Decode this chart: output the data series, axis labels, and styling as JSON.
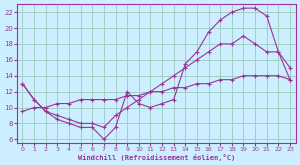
{
  "xlabel": "Windchill (Refroidissement éolien,°C)",
  "bg_color": "#cceeff",
  "line_color": "#993399",
  "grid_color": "#99ccbb",
  "xlim": [
    -0.5,
    23.5
  ],
  "ylim": [
    5.5,
    23
  ],
  "xticks": [
    0,
    1,
    2,
    3,
    4,
    5,
    6,
    7,
    8,
    9,
    10,
    11,
    12,
    13,
    14,
    15,
    16,
    17,
    18,
    19,
    20,
    21,
    22,
    23
  ],
  "yticks": [
    6,
    8,
    10,
    12,
    14,
    16,
    18,
    20,
    22
  ],
  "line1_x": [
    0,
    1,
    2,
    3,
    4,
    5,
    6,
    7,
    8,
    9,
    10,
    11,
    12,
    13,
    14,
    15,
    16,
    17,
    18,
    19,
    20,
    21,
    22,
    23
  ],
  "line1_y": [
    13,
    11,
    9.5,
    8.5,
    8,
    7.5,
    7.5,
    6,
    7.5,
    12,
    10.5,
    10,
    10.5,
    11,
    15.5,
    17,
    19.5,
    21,
    22,
    22.5,
    22.5,
    21.5,
    17,
    15
  ],
  "line2_x": [
    0,
    1,
    2,
    3,
    4,
    5,
    6,
    7,
    8,
    9,
    10,
    11,
    12,
    13,
    14,
    15,
    16,
    17,
    18,
    19,
    20,
    21,
    22,
    23
  ],
  "line2_y": [
    13,
    11,
    9.5,
    9,
    8.5,
    8,
    8,
    7.5,
    9,
    10,
    11,
    12,
    13,
    14,
    15,
    16,
    17,
    18,
    18,
    19,
    18,
    17,
    17,
    13.5
  ],
  "line3_x": [
    0,
    1,
    2,
    3,
    4,
    5,
    6,
    7,
    8,
    9,
    10,
    11,
    12,
    13,
    14,
    15,
    16,
    17,
    18,
    19,
    20,
    21,
    22,
    23
  ],
  "line3_y": [
    9.5,
    10,
    10,
    10.5,
    10.5,
    11,
    11,
    11,
    11,
    11.5,
    11.5,
    12,
    12,
    12.5,
    12.5,
    13,
    13,
    13.5,
    13.5,
    14,
    14,
    14,
    14,
    13.5
  ]
}
